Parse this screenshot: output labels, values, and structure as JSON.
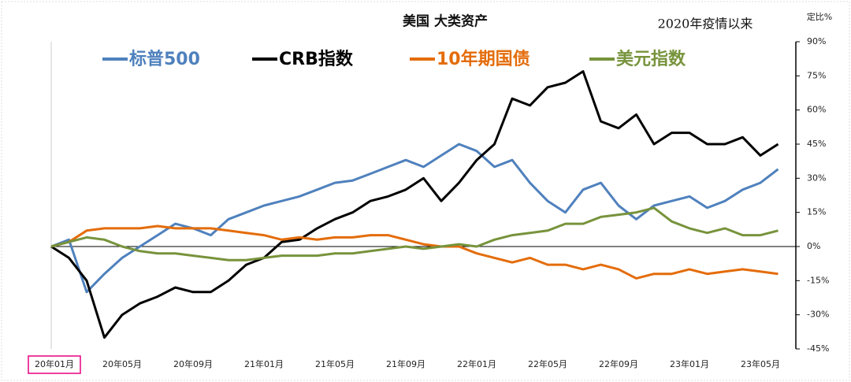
{
  "chart_data": {
    "type": "line",
    "title": "美国  大类资产",
    "subtitle": "2020年疫情以来",
    "y_axis_label": "定比%",
    "categories": [
      "20年01月",
      null,
      null,
      null,
      "20年05月",
      null,
      null,
      null,
      "20年09月",
      null,
      null,
      null,
      "21年01月",
      null,
      null,
      null,
      "21年05月",
      null,
      null,
      null,
      "21年09月",
      null,
      null,
      null,
      "22年01月",
      null,
      null,
      null,
      "22年05月",
      null,
      null,
      null,
      "22年09月",
      null,
      null,
      null,
      "23年01月",
      null,
      null,
      null,
      "23年05月",
      null
    ],
    "series": [
      {
        "name": "标普500",
        "color": "#4f81bd",
        "values": [
          0,
          3,
          -20,
          -12,
          -5,
          0,
          5,
          10,
          8,
          5,
          12,
          15,
          18,
          20,
          22,
          25,
          28,
          29,
          32,
          35,
          38,
          35,
          40,
          45,
          42,
          35,
          38,
          28,
          20,
          15,
          25,
          28,
          18,
          12,
          18,
          20,
          22,
          17,
          20,
          25,
          28,
          34
        ]
      },
      {
        "name": "CRB指数",
        "color": "#000000",
        "values": [
          0,
          -5,
          -15,
          -40,
          -30,
          -25,
          -22,
          -18,
          -20,
          -20,
          -15,
          -8,
          -5,
          2,
          3,
          8,
          12,
          15,
          20,
          22,
          25,
          30,
          20,
          28,
          38,
          45,
          65,
          62,
          70,
          72,
          77,
          55,
          52,
          58,
          45,
          50,
          50,
          45,
          45,
          48,
          40,
          45
        ]
      },
      {
        "name": "10年期国债",
        "color": "#e46c0a",
        "values": [
          0,
          2,
          7,
          8,
          8,
          8,
          9,
          8,
          8,
          8,
          7,
          6,
          5,
          3,
          4,
          3,
          4,
          4,
          5,
          5,
          3,
          1,
          0,
          0,
          -3,
          -5,
          -7,
          -5,
          -8,
          -8,
          -10,
          -8,
          -10,
          -14,
          -12,
          -12,
          -10,
          -12,
          -11,
          -10,
          -11,
          -12
        ]
      },
      {
        "name": "美元指数",
        "color": "#77933c",
        "values": [
          0,
          2,
          4,
          3,
          0,
          -2,
          -3,
          -3,
          -4,
          -5,
          -6,
          -6,
          -5,
          -4,
          -4,
          -4,
          -3,
          -3,
          -2,
          -1,
          0,
          -1,
          0,
          1,
          0,
          3,
          5,
          6,
          7,
          10,
          10,
          13,
          14,
          15,
          17,
          11,
          8,
          6,
          8,
          5,
          5,
          7
        ]
      }
    ],
    "ylim": [
      -45,
      90
    ],
    "yticks": [
      {
        "value": 90,
        "label": "90%"
      },
      {
        "value": 75,
        "label": "75%"
      },
      {
        "value": 60,
        "label": "60%"
      },
      {
        "value": 45,
        "label": "45%"
      },
      {
        "value": 30,
        "label": "30%"
      },
      {
        "value": 15,
        "label": "15%"
      },
      {
        "value": 0,
        "label": "0%"
      },
      {
        "value": -15,
        "label": "-15%"
      },
      {
        "value": -30,
        "label": "-30%"
      },
      {
        "value": -45,
        "label": "-45%"
      }
    ]
  }
}
